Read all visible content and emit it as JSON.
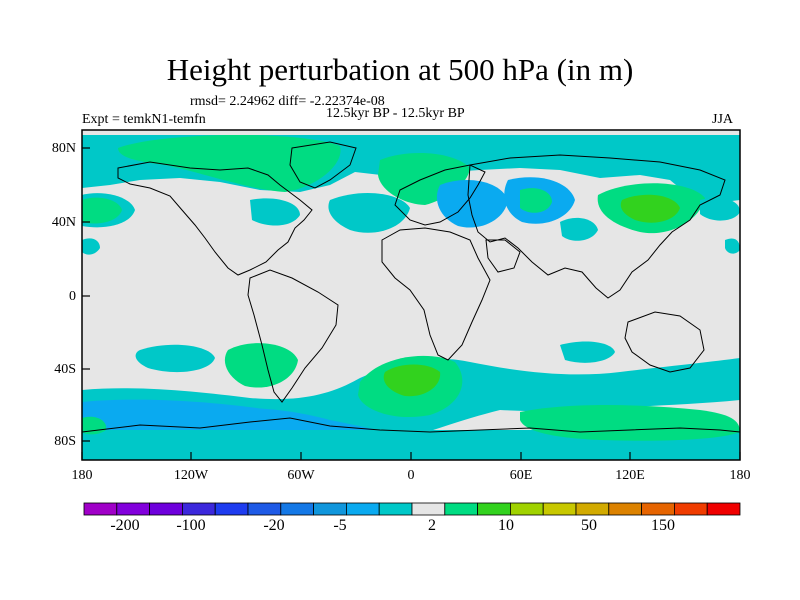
{
  "title": "Height perturbation at 500 hPa (in m)",
  "stats": "rmsd= 2.24962 diff= -2.22374e-08",
  "experiment": "Expt = temkN1-temfn",
  "period": "12.5kyr BP - 12.5kyr BP",
  "season": "JJA",
  "lat_labels": [
    "80N",
    "40N",
    "0",
    "40S",
    "80S"
  ],
  "lon_labels": [
    "180",
    "120W",
    "60W",
    "0",
    "60E",
    "120E",
    "180"
  ],
  "colorbar": {
    "colors": [
      "#a000c8",
      "#8200dc",
      "#6e00dc",
      "#3c28dc",
      "#1e3cf0",
      "#1e5ae6",
      "#1478e6",
      "#1096dc",
      "#0aaaf0",
      "#00c8c8",
      "#e6e6e6",
      "#00dc82",
      "#32d21e",
      "#a0d200",
      "#c8c800",
      "#d2aa00",
      "#dc8200",
      "#e66400",
      "#f03c00",
      "#f00000"
    ],
    "labels": [
      "-200",
      "-100",
      "-20",
      "-5",
      "2",
      "10",
      "50",
      "150"
    ]
  },
  "legend_colors": {
    "neutral": "#e6e6e6",
    "light_blue": "#00c8c8",
    "mid_blue": "#0aaaf0",
    "light_green": "#00dc82",
    "green": "#32d21e"
  }
}
